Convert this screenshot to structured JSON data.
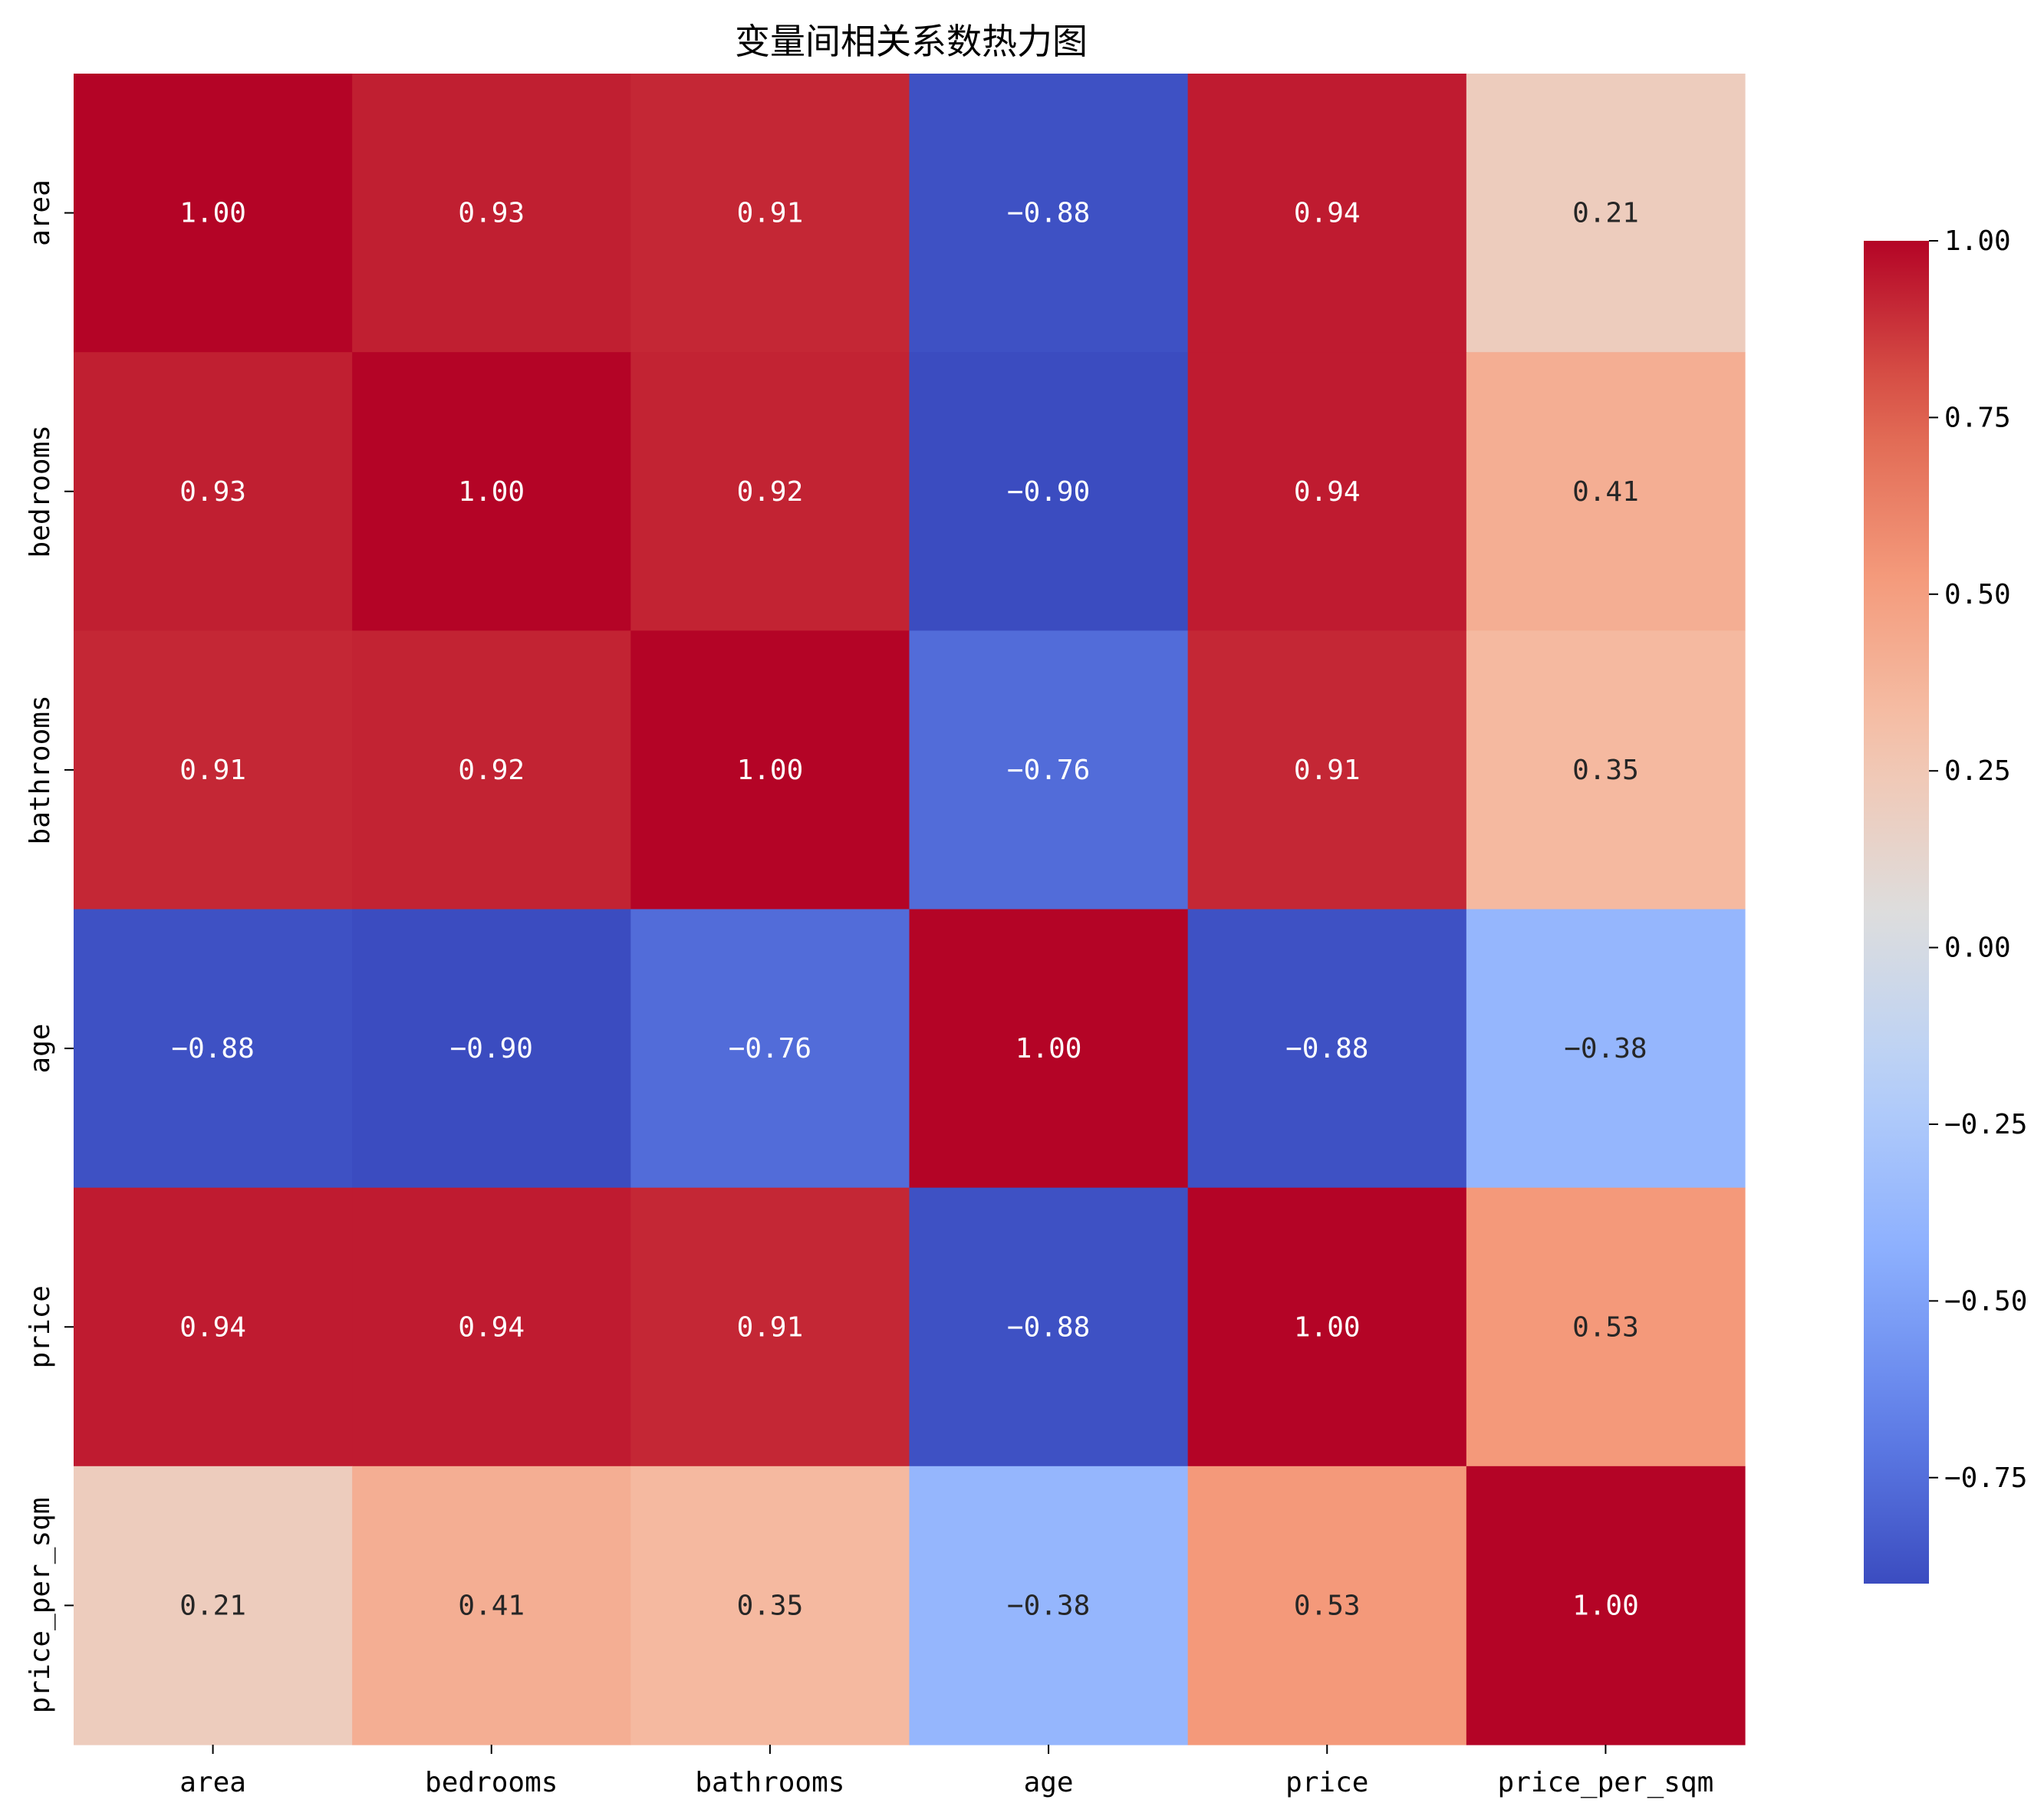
{
  "chart_data": {
    "type": "heatmap",
    "title": "变量间相关系数热力图",
    "xlabel": "",
    "ylabel": "",
    "x_categories": [
      "area",
      "bedrooms",
      "bathrooms",
      "age",
      "price",
      "price_per_sqm"
    ],
    "y_categories": [
      "area",
      "bedrooms",
      "bathrooms",
      "age",
      "price",
      "price_per_sqm"
    ],
    "values": [
      [
        1.0,
        0.93,
        0.91,
        -0.88,
        0.94,
        0.21
      ],
      [
        0.93,
        1.0,
        0.92,
        -0.9,
        0.94,
        0.41
      ],
      [
        0.91,
        0.92,
        1.0,
        -0.76,
        0.91,
        0.35
      ],
      [
        -0.88,
        -0.9,
        -0.76,
        1.0,
        -0.88,
        -0.38
      ],
      [
        0.94,
        0.94,
        0.91,
        -0.88,
        1.0,
        0.53
      ],
      [
        0.21,
        0.41,
        0.35,
        -0.38,
        0.53,
        1.0
      ]
    ],
    "annotation_format": "0.00",
    "colormap": "coolwarm",
    "colorbar": {
      "range": [
        -0.9,
        1.0
      ],
      "ticks": [
        1.0,
        0.75,
        0.5,
        0.25,
        0.0,
        -0.25,
        -0.5,
        -0.75
      ],
      "tick_labels": [
        "1.00",
        "0.75",
        "0.50",
        "0.25",
        "0.00",
        "−0.25",
        "−0.50",
        "−0.75"
      ],
      "placement": "right"
    },
    "grid": false
  }
}
